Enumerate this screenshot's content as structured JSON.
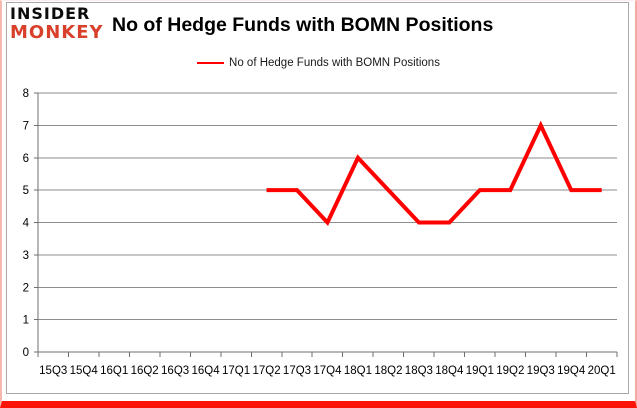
{
  "logo": {
    "line1": "INSIDER",
    "line2": "MONKEY",
    "line1_color": "#0c0c0c",
    "line2_color": "#d8402c"
  },
  "header": {
    "title": "No of Hedge Funds with BOMN Positions"
  },
  "legend": {
    "label": "No of Hedge Funds with BOMN Positions",
    "line_color": "#ff0000"
  },
  "chart_data": {
    "type": "line",
    "title": "No of Hedge Funds with BOMN Positions",
    "categories": [
      "15Q3",
      "15Q4",
      "16Q1",
      "16Q2",
      "16Q3",
      "16Q4",
      "17Q1",
      "17Q2",
      "17Q3",
      "17Q4",
      "18Q1",
      "18Q2",
      "18Q3",
      "18Q4",
      "19Q1",
      "19Q2",
      "19Q3",
      "19Q4",
      "20Q1"
    ],
    "series": [
      {
        "name": "No of Hedge Funds with BOMN Positions",
        "color": "#ff0000",
        "values": [
          null,
          null,
          null,
          null,
          null,
          null,
          null,
          5,
          5,
          4,
          6,
          5,
          4,
          4,
          5,
          5,
          7,
          5,
          5
        ]
      }
    ],
    "ylim": [
      0,
      8
    ],
    "ytick_interval": 1,
    "yticks": [
      0,
      1,
      2,
      3,
      4,
      5,
      6,
      7,
      8
    ],
    "grid": true,
    "legend_position": "top",
    "line_width": 4
  },
  "colors": {
    "grid": "#8e8e8e",
    "axis": "#6f6f6f",
    "frame": "#a9a9a9",
    "text": "#000000",
    "accent_red": "#ff0000",
    "border_bottom": "#fe1406",
    "border_side": "#f3a8a1"
  }
}
